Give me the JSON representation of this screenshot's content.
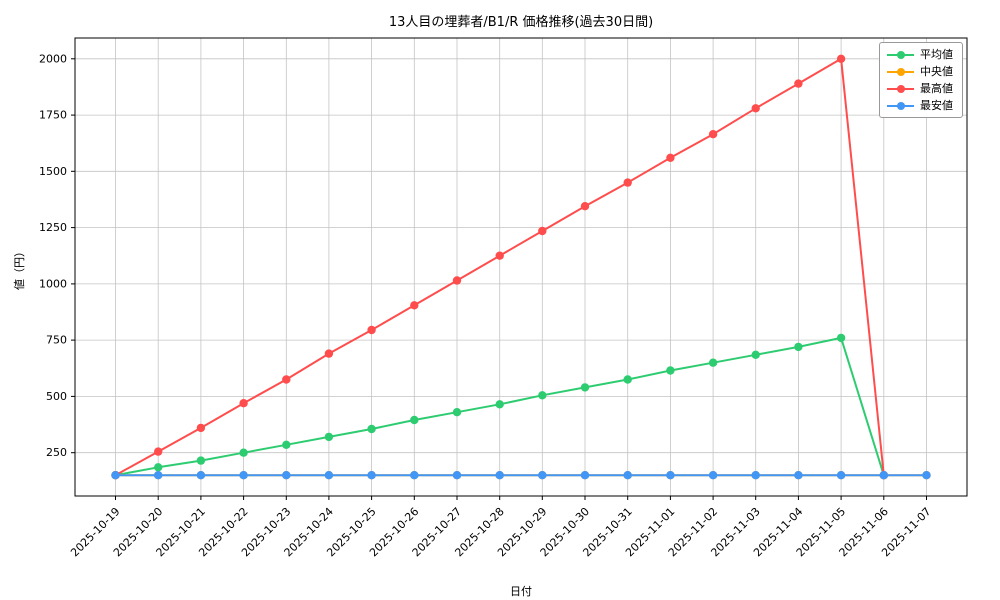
{
  "chart_data": {
    "type": "line",
    "title": "13人目の埋葬者/B1/R 価格推移(過去30日間)",
    "xlabel": "日付",
    "ylabel": "値（円）",
    "grid": true,
    "legend_position": "upper right",
    "categories": [
      "2025-10-19",
      "2025-10-20",
      "2025-10-21",
      "2025-10-22",
      "2025-10-23",
      "2025-10-24",
      "2025-10-25",
      "2025-10-26",
      "2025-10-27",
      "2025-10-28",
      "2025-10-29",
      "2025-10-30",
      "2025-10-31",
      "2025-11-01",
      "2025-11-02",
      "2025-11-03",
      "2025-11-04",
      "2025-11-05",
      "2025-11-06",
      "2025-11-07"
    ],
    "yticks": [
      250,
      500,
      750,
      1000,
      1250,
      1500,
      1750,
      2000
    ],
    "ylim": [
      57.5,
      2092.5
    ],
    "xlim": [
      -0.95,
      19.95
    ],
    "series": [
      {
        "name": "平均値",
        "color": "#2ecc71",
        "values": [
          150,
          185,
          215,
          250,
          285,
          320,
          355,
          395,
          430,
          465,
          505,
          540,
          575,
          615,
          650,
          685,
          720,
          760,
          150,
          null
        ]
      },
      {
        "name": "中央値",
        "color": "#ffa502",
        "values": [
          150,
          150,
          150,
          150,
          150,
          150,
          150,
          150,
          150,
          150,
          150,
          150,
          150,
          150,
          150,
          150,
          150,
          150,
          150,
          150
        ]
      },
      {
        "name": "最高値",
        "color": "#ff4d4d",
        "values": [
          150,
          255,
          360,
          470,
          575,
          690,
          795,
          905,
          1015,
          1125,
          1235,
          1345,
          1450,
          1560,
          1665,
          1780,
          1890,
          2000,
          150,
          null
        ]
      },
      {
        "name": "最安値",
        "color": "#4296f5",
        "values": [
          150,
          150,
          150,
          150,
          150,
          150,
          150,
          150,
          150,
          150,
          150,
          150,
          150,
          150,
          150,
          150,
          150,
          150,
          150,
          150
        ]
      }
    ]
  }
}
